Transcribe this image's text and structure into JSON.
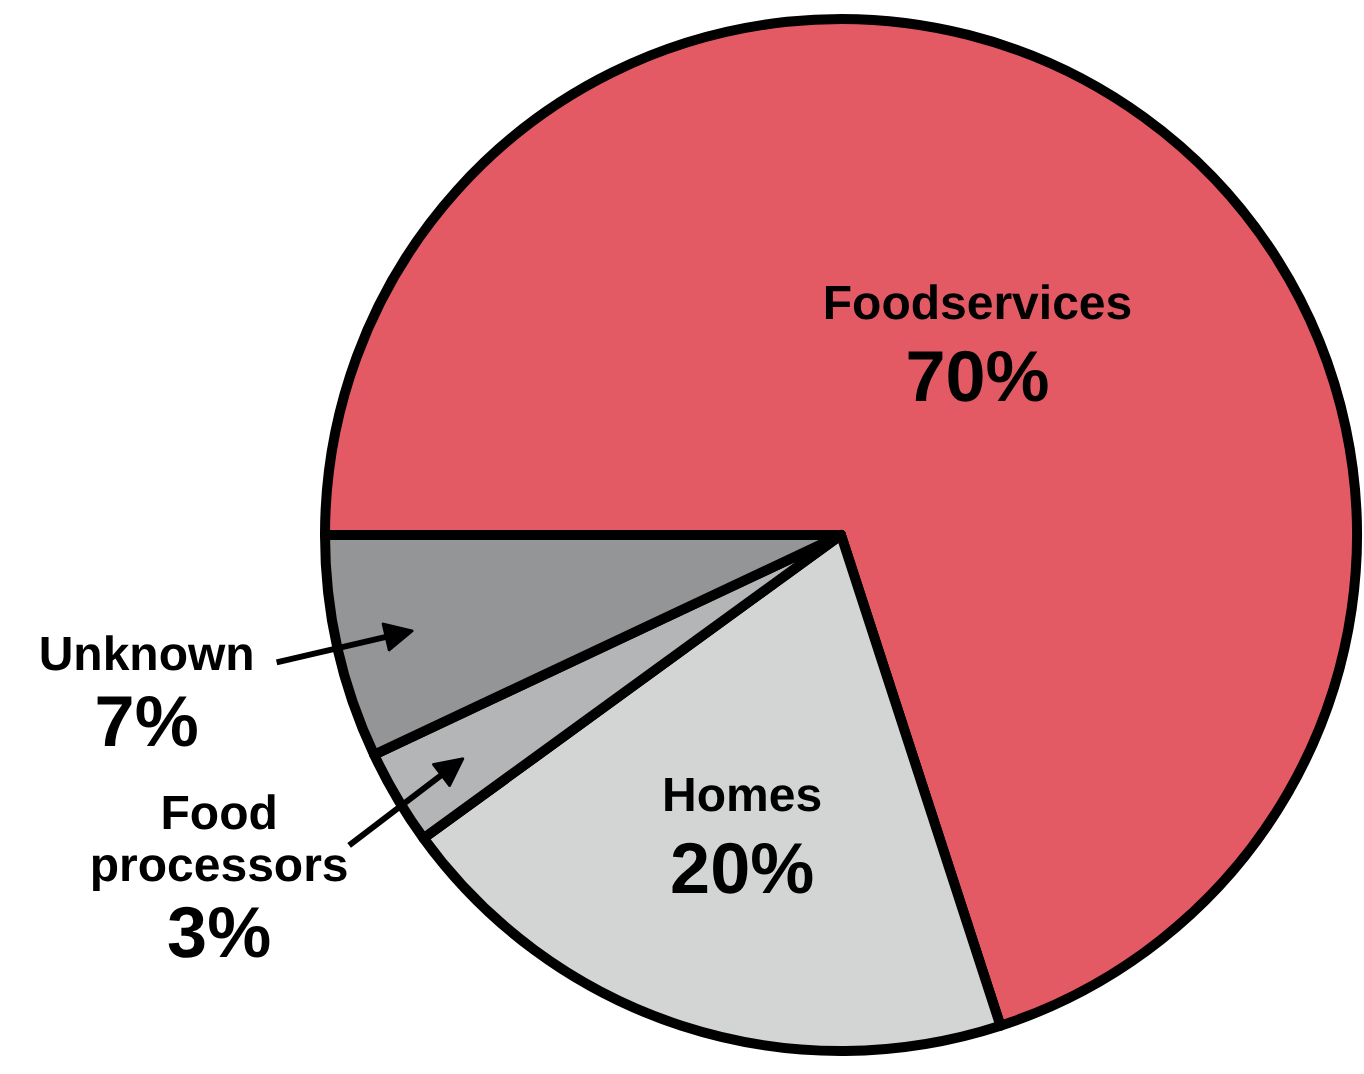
{
  "chart_data": {
    "type": "pie",
    "categories": [
      "Foodservices",
      "Homes",
      "Food processors",
      "Unknown"
    ],
    "values": [
      70,
      20,
      3,
      7
    ],
    "colors": [
      "#e35a64",
      "#d3d4d4",
      "#b3b5b7",
      "#939597"
    ],
    "value_labels": [
      "70%",
      "20%",
      "3%",
      "7%"
    ],
    "legend": false
  }
}
